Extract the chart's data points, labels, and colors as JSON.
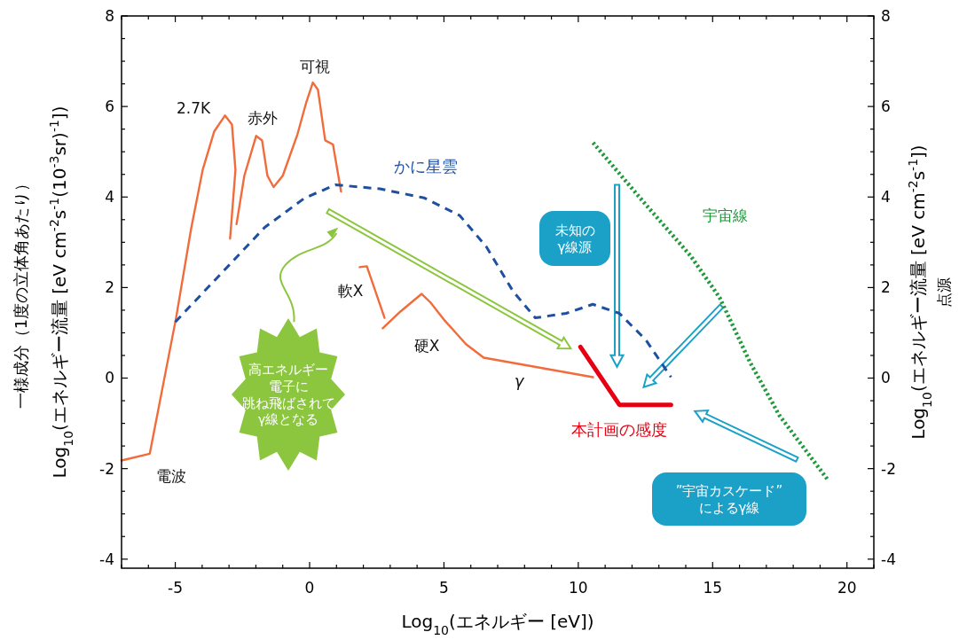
{
  "chart_data": {
    "type": "line",
    "xlabel": "Log$_{10}$(エネルギー [eV])",
    "ylabel": "一様成分（1度の立体角あたり）\nLog$_{10}$(エネルギー流量 [eV cm$^{-2}$s$^{-1}$(10$^{-3}$sr)$^{-1}$])",
    "y2label": "Log$_{10}$(エネルギー流量 [eV cm$^{-2}$s$^{-1}$])\n点源",
    "xlim": [
      -7,
      21
    ],
    "ylim": [
      -4.2,
      8
    ],
    "y2lim": [
      -4.2,
      8
    ],
    "xticks": [
      {
        "value": -7,
        "label": null
      },
      {
        "value": -6,
        "label": null
      },
      -5,
      {
        "value": -4,
        "label": null
      },
      {
        "value": -3,
        "label": null
      },
      {
        "value": -2,
        "label": null
      },
      {
        "value": -1,
        "label": null
      },
      0,
      {
        "value": 1,
        "label": null
      },
      {
        "value": 2,
        "label": null
      },
      {
        "value": 3,
        "label": null
      },
      {
        "value": 4,
        "label": null
      },
      5,
      {
        "value": 6,
        "label": null
      },
      {
        "value": 7,
        "label": null
      },
      {
        "value": 8,
        "label": null
      },
      {
        "value": 9,
        "label": null
      },
      10,
      {
        "value": 11,
        "label": null
      },
      {
        "value": 12,
        "label": null
      },
      {
        "value": 13,
        "label": null
      },
      {
        "value": 14,
        "label": null
      },
      15,
      {
        "value": 16,
        "label": null
      },
      {
        "value": 17,
        "label": null
      },
      {
        "value": 18,
        "label": null
      },
      {
        "value": 19,
        "label": null
      },
      20,
      {
        "value": 21,
        "label": null
      }
    ],
    "yticks": [
      -4,
      {
        "value": -3.5,
        "label": null
      },
      {
        "value": -3,
        "label": null
      },
      {
        "value": -2.5,
        "label": null
      },
      -2,
      {
        "value": -1.5,
        "label": null
      },
      {
        "value": -1,
        "label": null
      },
      {
        "value": -0.5,
        "label": null
      },
      0,
      {
        "value": 0.5,
        "label": null
      },
      {
        "value": 1,
        "label": null
      },
      {
        "value": 1.5,
        "label": null
      },
      2,
      {
        "value": 2.5,
        "label": null
      },
      {
        "value": 3,
        "label": null
      },
      {
        "value": 3.5,
        "label": null
      },
      4,
      {
        "value": 4.5,
        "label": null
      },
      {
        "value": 5,
        "label": null
      },
      {
        "value": 5.5,
        "label": null
      },
      6,
      {
        "value": 6.5,
        "label": null
      },
      {
        "value": 7,
        "label": null
      },
      {
        "value": 7.5,
        "label": null
      },
      8
    ],
    "y2ticks": [
      -4,
      {
        "value": -3.5,
        "label": null
      },
      {
        "value": -3,
        "label": null
      },
      {
        "value": -2.5,
        "label": null
      },
      -2,
      {
        "value": -1.5,
        "label": null
      },
      {
        "value": -1,
        "label": null
      },
      {
        "value": -0.5,
        "label": null
      },
      0,
      {
        "value": 0.5,
        "label": null
      },
      {
        "value": 1,
        "label": null
      },
      {
        "value": 1.5,
        "label": null
      },
      2,
      {
        "value": 2.5,
        "label": null
      },
      {
        "value": 3,
        "label": null
      },
      {
        "value": 3.5,
        "label": null
      },
      4,
      {
        "value": 4.5,
        "label": null
      },
      {
        "value": 5,
        "label": null
      },
      {
        "value": 5.5,
        "label": null
      },
      6,
      {
        "value": 6.5,
        "label": null
      },
      {
        "value": 7,
        "label": null
      },
      {
        "value": 7.5,
        "label": null
      },
      8
    ],
    "marker": "none",
    "series": [
      {
        "color": "#f26b3a",
        "line_style": "solid",
        "x": [
          -7,
          -5.95,
          -4.97,
          -4.41,
          -3.98,
          -3.55,
          -3.15,
          -2.89,
          -2.76,
          -2.96
        ],
        "values": [
          -1.82,
          -1.67,
          1.33,
          3.3,
          4.6,
          5.45,
          5.8,
          5.6,
          4.6,
          3.08
        ]
      },
      {
        "color": "#f26b3a",
        "line_style": "solid",
        "x": [
          -2.72,
          -2.43,
          -1.99,
          -1.77,
          -1.57,
          -1.34,
          -1.0,
          -0.45,
          -0.12,
          0.12,
          0.31,
          0.58,
          0.87,
          1.17
        ],
        "values": [
          3.4,
          4.47,
          5.35,
          5.25,
          4.47,
          4.22,
          4.47,
          5.39,
          6.1,
          6.53,
          6.37,
          5.25,
          5.16,
          4.12
        ]
      },
      {
        "color": "#f26b3a",
        "line_style": "solid",
        "x": [
          1.86,
          2.13,
          2.79
        ],
        "values": [
          2.45,
          2.47,
          1.33
        ]
      },
      {
        "color": "#f26b3a",
        "line_style": "solid",
        "x": [
          2.72,
          3.38,
          4.17,
          4.5,
          5.03,
          5.82,
          6.48,
          10.55
        ],
        "values": [
          1.1,
          1.47,
          1.86,
          1.67,
          1.27,
          0.75,
          0.45,
          0.02
        ]
      },
      {
        "color": "#1f4fa0",
        "line_style": "dashed",
        "x": [
          -5,
          -2.99,
          -1.67,
          -0.18,
          0.97,
          2.62,
          4.27,
          5.59,
          6.58,
          7.57,
          8.4,
          9.55,
          10.54,
          11.53,
          12.52,
          13.45
        ],
        "values": [
          1.24,
          2.5,
          3.33,
          3.98,
          4.27,
          4.18,
          3.98,
          3.59,
          2.9,
          1.92,
          1.33,
          1.43,
          1.63,
          1.43,
          0.84,
          0.02
        ]
      },
      {
        "color": "#1e9a3a",
        "line_style": "dotted",
        "x": [
          10.55,
          12.53,
          14.18,
          15.26,
          16.39,
          17.48,
          19.29
        ],
        "values": [
          5.2,
          3.82,
          2.7,
          1.78,
          0.35,
          -0.82,
          -2.25
        ]
      },
      {
        "color": "#e60012",
        "line_style": "solid",
        "x": [
          10.08,
          11.53,
          13.45
        ],
        "values": [
          0.69,
          -0.59,
          -0.59
        ]
      }
    ],
    "annotations": [
      "2.7K",
      "赤外",
      "可視",
      "電波",
      "かに星雲",
      "軟X",
      "硬X",
      "γ",
      "本計画の感度",
      "宇宙線",
      "未知のγ線源",
      "高エネルギー電子に跳ね飛ばされてγ線となる",
      "”宇宙カスケード”によるγ線"
    ]
  }
}
